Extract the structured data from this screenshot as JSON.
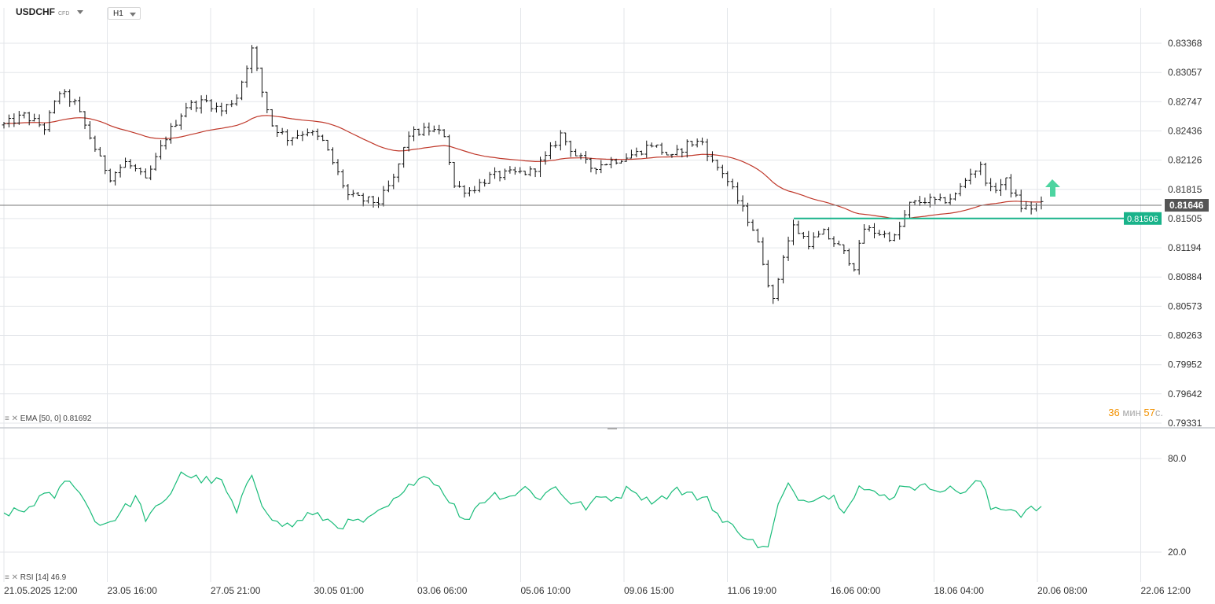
{
  "header": {
    "symbol": "USDCHF",
    "symbol_type": "CFD",
    "timeframe": "H1"
  },
  "indicators": {
    "ema_label": "EMA [50, 0] 0.81692",
    "rsi_label": "RSI [14] 46.9"
  },
  "countdown": {
    "minutes": "36",
    "min_unit": "мин",
    "seconds": "57",
    "sec_unit": "с."
  },
  "colors": {
    "candle": "#111111",
    "ema": "#c0392b",
    "rsi": "#1abc7a",
    "support": "#19b38a",
    "arrow": "#2ecc8f",
    "grid": "#e3e6ea"
  },
  "chart_data": {
    "type": "candlestick",
    "price_ticks": [
      "0.83368",
      "0.83057",
      "0.82747",
      "0.82436",
      "0.82126",
      "0.81815",
      "0.81505",
      "0.81194",
      "0.80884",
      "0.80573",
      "0.80263",
      "0.79952",
      "0.79642",
      "0.79331"
    ],
    "y_range": [
      0.79331,
      0.83368
    ],
    "time_ticks": [
      "21.05.2025  12:00",
      "23.05  16:00",
      "27.05  21:00",
      "30.05  01:00",
      "03.06  06:00",
      "05.06  10:00",
      "09.06  15:00",
      "11.06  19:00",
      "16.06  00:00",
      "18.06  04:00",
      "20.06  08:00",
      "22.06  12:00"
    ],
    "last_price": "0.81646",
    "support_level": {
      "value": 0.81506,
      "label": "0.81506"
    },
    "rsi_ticks": [
      "80.0",
      "20.0"
    ],
    "rsi_range": [
      20,
      80
    ],
    "price_path": [
      [
        0,
        0.825
      ],
      [
        4,
        0.826
      ],
      [
        8,
        0.8247
      ],
      [
        11,
        0.8285
      ],
      [
        14,
        0.8273
      ],
      [
        17,
        0.8237
      ],
      [
        19,
        0.8213
      ],
      [
        21,
        0.8195
      ],
      [
        24,
        0.821
      ],
      [
        26,
        0.8202
      ],
      [
        28,
        0.819
      ],
      [
        32,
        0.8237
      ],
      [
        36,
        0.827
      ],
      [
        40,
        0.8275
      ],
      [
        43,
        0.8265
      ],
      [
        46,
        0.828
      ],
      [
        49,
        0.833
      ],
      [
        51,
        0.8285
      ],
      [
        53,
        0.825
      ],
      [
        56,
        0.8236
      ],
      [
        60,
        0.8244
      ],
      [
        63,
        0.8232
      ],
      [
        65,
        0.821
      ],
      [
        68,
        0.8175
      ],
      [
        71,
        0.817
      ],
      [
        74,
        0.8168
      ],
      [
        77,
        0.8192
      ],
      [
        80,
        0.824
      ],
      [
        84,
        0.8245
      ],
      [
        87,
        0.824
      ],
      [
        89,
        0.8185
      ],
      [
        92,
        0.818
      ],
      [
        96,
        0.8195
      ],
      [
        100,
        0.8198
      ],
      [
        104,
        0.82
      ],
      [
        107,
        0.8215
      ],
      [
        110,
        0.824
      ],
      [
        113,
        0.8218
      ],
      [
        116,
        0.8205
      ],
      [
        119,
        0.821
      ],
      [
        122,
        0.8215
      ],
      [
        125,
        0.822
      ],
      [
        128,
        0.823
      ],
      [
        132,
        0.8215
      ],
      [
        135,
        0.823
      ],
      [
        138,
        0.8232
      ],
      [
        140,
        0.821
      ],
      [
        142,
        0.82
      ],
      [
        145,
        0.817
      ],
      [
        148,
        0.814
      ],
      [
        150,
        0.8105
      ],
      [
        152,
        0.8062
      ],
      [
        154,
        0.8112
      ],
      [
        156,
        0.8142
      ],
      [
        159,
        0.8125
      ],
      [
        162,
        0.8135
      ],
      [
        165,
        0.812
      ],
      [
        168,
        0.81
      ],
      [
        170,
        0.814
      ],
      [
        173,
        0.8135
      ],
      [
        176,
        0.813
      ],
      [
        179,
        0.8165
      ],
      [
        182,
        0.817
      ],
      [
        185,
        0.8168
      ],
      [
        188,
        0.8175
      ],
      [
        191,
        0.82
      ],
      [
        193,
        0.8205
      ],
      [
        195,
        0.818
      ],
      [
        198,
        0.819
      ],
      [
        201,
        0.8163
      ],
      [
        203,
        0.8162
      ],
      [
        205,
        0.8165
      ]
    ],
    "rsi_path": [
      [
        0,
        45
      ],
      [
        4,
        46
      ],
      [
        7,
        55
      ],
      [
        10,
        56
      ],
      [
        13,
        68
      ],
      [
        16,
        52
      ],
      [
        19,
        37
      ],
      [
        22,
        42
      ],
      [
        26,
        55
      ],
      [
        28,
        42
      ],
      [
        32,
        52
      ],
      [
        35,
        72
      ],
      [
        37,
        68
      ],
      [
        40,
        66
      ],
      [
        43,
        65
      ],
      [
        46,
        45
      ],
      [
        49,
        70
      ],
      [
        51,
        52
      ],
      [
        54,
        38
      ],
      [
        57,
        37
      ],
      [
        60,
        44
      ],
      [
        63,
        42
      ],
      [
        66,
        37
      ],
      [
        69,
        39
      ],
      [
        72,
        40
      ],
      [
        75,
        47
      ],
      [
        79,
        57
      ],
      [
        82,
        70
      ],
      [
        85,
        66
      ],
      [
        88,
        54
      ],
      [
        91,
        39
      ],
      [
        94,
        52
      ],
      [
        97,
        57
      ],
      [
        100,
        56
      ],
      [
        103,
        61
      ],
      [
        106,
        55
      ],
      [
        109,
        62
      ],
      [
        112,
        52
      ],
      [
        115,
        49
      ],
      [
        118,
        55
      ],
      [
        121,
        55
      ],
      [
        124,
        62
      ],
      [
        127,
        53
      ],
      [
        130,
        55
      ],
      [
        133,
        60
      ],
      [
        136,
        56
      ],
      [
        139,
        55
      ],
      [
        142,
        39
      ],
      [
        145,
        35
      ],
      [
        148,
        26
      ],
      [
        151,
        22
      ],
      [
        153,
        50
      ],
      [
        155,
        62
      ],
      [
        158,
        53
      ],
      [
        161,
        57
      ],
      [
        164,
        55
      ],
      [
        166,
        48
      ],
      [
        169,
        62
      ],
      [
        172,
        57
      ],
      [
        175,
        55
      ],
      [
        178,
        64
      ],
      [
        181,
        61
      ],
      [
        184,
        62
      ],
      [
        187,
        60
      ],
      [
        190,
        59
      ],
      [
        193,
        66
      ],
      [
        195,
        48
      ],
      [
        198,
        49
      ],
      [
        201,
        45
      ],
      [
        203,
        47
      ],
      [
        205,
        49
      ]
    ]
  }
}
